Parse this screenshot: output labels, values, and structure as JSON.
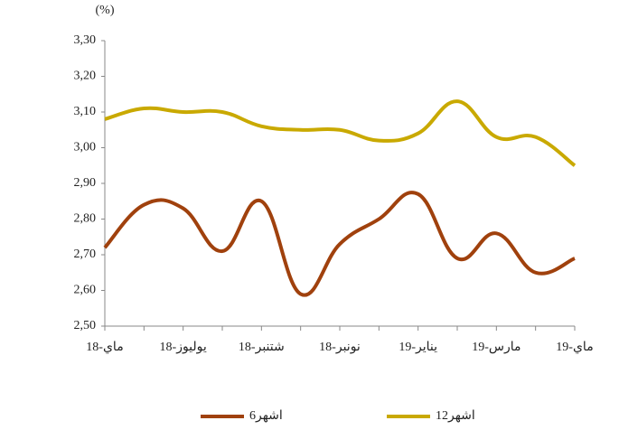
{
  "chart_data": {
    "type": "line",
    "y_label": "(%)",
    "categories": [
      "18-ماي",
      null,
      "18-يوليوز",
      null,
      "18-شتنبر",
      null,
      "18-نونبر",
      null,
      "19-يناير",
      null,
      "مارس-19",
      null,
      "19-ماي"
    ],
    "series": [
      {
        "name": "6اشهر",
        "color": "#a0410d",
        "values": [
          2.72,
          2.84,
          2.83,
          2.71,
          2.85,
          2.59,
          2.73,
          2.8,
          2.87,
          2.69,
          2.76,
          2.65,
          2.69
        ]
      },
      {
        "name": "12اشهر",
        "color": "#c9a900",
        "values": [
          3.08,
          3.11,
          3.1,
          3.1,
          3.06,
          3.05,
          3.05,
          3.02,
          3.04,
          3.13,
          3.03,
          3.03,
          2.95
        ]
      }
    ],
    "ylim": [
      2.5,
      3.3
    ],
    "yticks": [
      {
        "value": 2.5,
        "label": "2,50"
      },
      {
        "value": 2.6,
        "label": "2,60"
      },
      {
        "value": 2.7,
        "label": "2,70"
      },
      {
        "value": 2.8,
        "label": "2,80"
      },
      {
        "value": 2.9,
        "label": "2,90"
      },
      {
        "value": 3.0,
        "label": "3,00"
      },
      {
        "value": 3.1,
        "label": "3,10"
      },
      {
        "value": 3.2,
        "label": "3,20"
      },
      {
        "value": 3.3,
        "label": "3,30"
      }
    ],
    "grid": false,
    "legend": "bottom"
  }
}
